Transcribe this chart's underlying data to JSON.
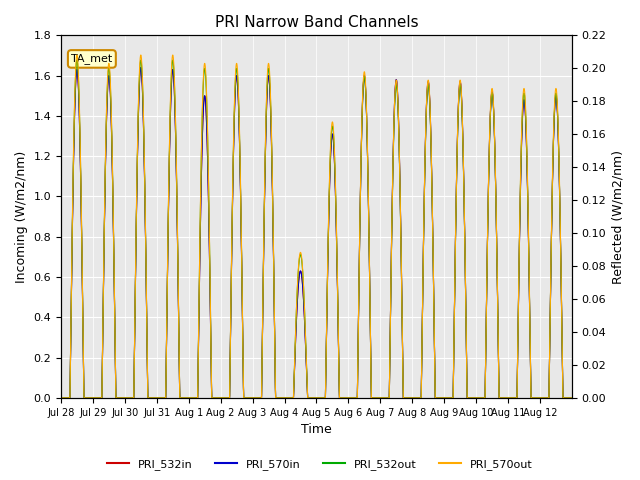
{
  "title": "PRI Narrow Band Channels",
  "ylabel_left": "Incoming (W/m2/nm)",
  "ylabel_right": "Reflected (W/m2/nm)",
  "xlabel": "Time",
  "ylim_left": [
    0,
    1.8
  ],
  "ylim_right": [
    0.0,
    0.22
  ],
  "yticks_left": [
    0.0,
    0.2,
    0.4,
    0.6,
    0.8,
    1.0,
    1.2,
    1.4,
    1.6,
    1.8
  ],
  "yticks_right": [
    0.0,
    0.02,
    0.04,
    0.06,
    0.08,
    0.1,
    0.12,
    0.14,
    0.16,
    0.18,
    0.2,
    0.22
  ],
  "background_color": "#e8e8e8",
  "ta_met_label": "TA_met",
  "legend": [
    "PRI_532in",
    "PRI_570in",
    "PRI_532out",
    "PRI_570out"
  ],
  "line_colors": [
    "#cc0000",
    "#0000cc",
    "#00aa00",
    "#ffaa00"
  ],
  "xtick_labels": [
    "Jul 28",
    "Jul 29",
    "Jul 30",
    "Jul 31",
    "Aug 1",
    "Aug 2",
    "Aug 3",
    "Aug 4",
    "Aug 5",
    "Aug 6",
    "Aug 7",
    "Aug 8",
    "Aug 9",
    "Aug 10",
    "Aug 11",
    "Aug 12"
  ],
  "days": 16,
  "day_peaks_in": [
    1.63,
    1.6,
    1.64,
    1.63,
    1.5,
    1.6,
    1.6,
    0.63,
    1.31,
    1.6,
    1.58,
    1.57,
    1.57,
    1.52,
    1.48,
    1.5
  ],
  "day_peaks_out": [
    0.205,
    0.2,
    0.205,
    0.205,
    0.2,
    0.2,
    0.2,
    0.087,
    0.165,
    0.195,
    0.19,
    0.19,
    0.19,
    0.185,
    0.185,
    0.185
  ]
}
